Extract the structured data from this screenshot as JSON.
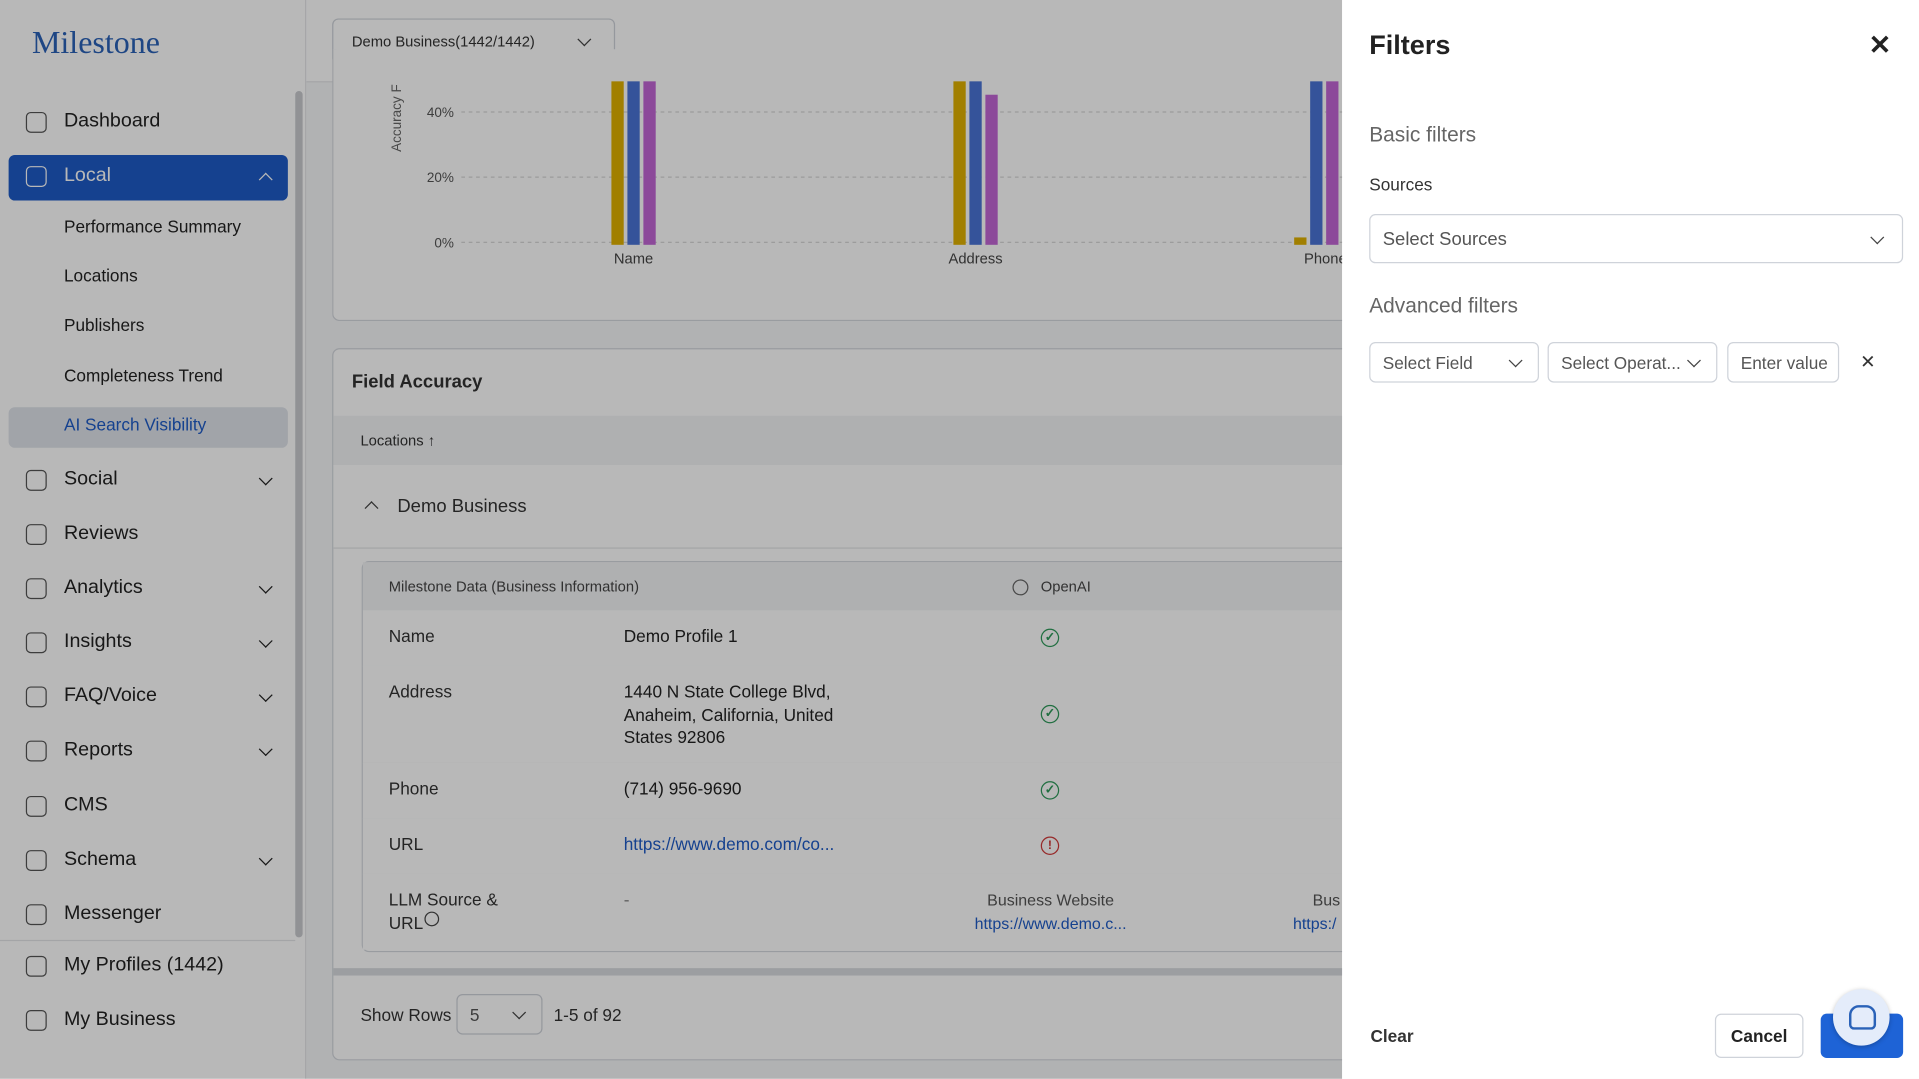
{
  "sidebar": {
    "logo": "Milestone",
    "nav": [
      {
        "label": "Dashboard",
        "level": 1
      },
      {
        "label": "Local",
        "level": 1,
        "active": true,
        "expanded": true
      },
      {
        "label": "Performance Summary",
        "level": 2
      },
      {
        "label": "Locations",
        "level": 2
      },
      {
        "label": "Publishers",
        "level": 2
      },
      {
        "label": "Completeness Trend",
        "level": 2
      },
      {
        "label": "AI Search Visibility",
        "level": 2,
        "selected": true
      },
      {
        "label": "Social",
        "level": 1,
        "has_submenu": true
      },
      {
        "label": "Reviews",
        "level": 1
      },
      {
        "label": "Analytics",
        "level": 1,
        "has_submenu": true
      },
      {
        "label": "Insights",
        "level": 1,
        "has_submenu": true
      },
      {
        "label": "FAQ/Voice",
        "level": 1,
        "has_submenu": true
      },
      {
        "label": "Reports",
        "level": 1,
        "has_submenu": true
      },
      {
        "label": "CMS",
        "level": 1
      },
      {
        "label": "Schema",
        "level": 1,
        "has_submenu": true
      },
      {
        "label": "Messenger",
        "level": 1
      }
    ],
    "footer_nav": [
      "My Profiles (1442)",
      "My Business"
    ]
  },
  "topbar": {
    "business_selector": "Demo Business(1442/1442)"
  },
  "chart": {
    "y_axis_label": "Accuracy F",
    "yticks": [
      "40%",
      "20%",
      "0%"
    ],
    "categories": [
      "Name",
      "Address",
      "Phone Num"
    ]
  },
  "field_accuracy": {
    "title": "Field Accuracy",
    "sort_column": "Locations",
    "group": "Demo Business",
    "table": {
      "headers": [
        "Milestone Data (Business Information)",
        "OpenAI"
      ],
      "rows": [
        {
          "field": "Name",
          "value": "Demo Profile 1",
          "status": "ok"
        },
        {
          "field": "Address",
          "value": "1440 N State College Blvd, Anaheim, California, United States 92806",
          "status": "ok"
        },
        {
          "field": "Phone",
          "value": "(714) 956-9690",
          "status": "ok"
        },
        {
          "field": "URL",
          "value": "https://www.demo.com/co...",
          "status": "error",
          "link": true
        },
        {
          "field": "LLM Source & URL",
          "value": "-",
          "source": "Business Website",
          "source_url": "https://www.demo.c...",
          "next_source": "Bus",
          "next_url": "https:/"
        }
      ]
    }
  },
  "pagination": {
    "label": "Show Rows",
    "rows": "5",
    "range": "1-5 of 92"
  },
  "filters": {
    "title": "Filters",
    "basic_title": "Basic filters",
    "sources_label": "Sources",
    "sources_placeholder": "Select Sources",
    "advanced_title": "Advanced filters",
    "field_placeholder": "Select Field",
    "operator_placeholder": "Select Operat...",
    "value_placeholder": "Enter value",
    "clear": "Clear",
    "cancel": "Cancel"
  }
}
